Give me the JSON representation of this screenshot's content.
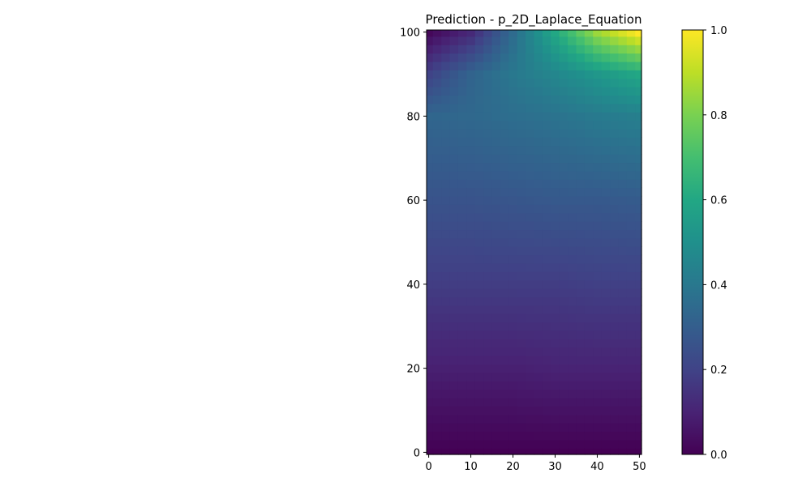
{
  "chart_data": {
    "type": "heatmap",
    "title": "Prediction - p_2D_Laplace_Equation",
    "xlabel": "",
    "ylabel": "",
    "xlim": [
      -0.5,
      50.5
    ],
    "ylim": [
      -0.5,
      100.5
    ],
    "x_ticks": [
      0,
      10,
      20,
      30,
      40,
      50
    ],
    "y_ticks": [
      0,
      20,
      40,
      60,
      80,
      100
    ],
    "colorbar": {
      "colormap": "viridis",
      "range": [
        0.0,
        1.0
      ],
      "ticks": [
        "0.0",
        "0.2",
        "0.4",
        "0.6",
        "0.8",
        "1.0"
      ]
    },
    "field_description": "p(x,y) ≈ 0 at bottom (y=0), increasing with y; maximum 1.0 at top-right corner (x=50,y=100); near 0 at top-left corner (x=0,y=100)",
    "sampled_values": {
      "x": [
        0,
        10,
        20,
        30,
        40,
        50
      ],
      "y": [
        0,
        20,
        40,
        60,
        80,
        90,
        100
      ],
      "z": [
        [
          0.0,
          0.0,
          0.0,
          0.0,
          0.0,
          0.0
        ],
        [
          0.09,
          0.09,
          0.09,
          0.1,
          0.1,
          0.1
        ],
        [
          0.18,
          0.18,
          0.18,
          0.18,
          0.19,
          0.19
        ],
        [
          0.26,
          0.26,
          0.27,
          0.28,
          0.28,
          0.29
        ],
        [
          0.33,
          0.34,
          0.36,
          0.38,
          0.41,
          0.43
        ],
        [
          0.2,
          0.32,
          0.4,
          0.46,
          0.53,
          0.6
        ],
        [
          0.02,
          0.12,
          0.35,
          0.6,
          0.85,
          1.0
        ]
      ]
    }
  }
}
